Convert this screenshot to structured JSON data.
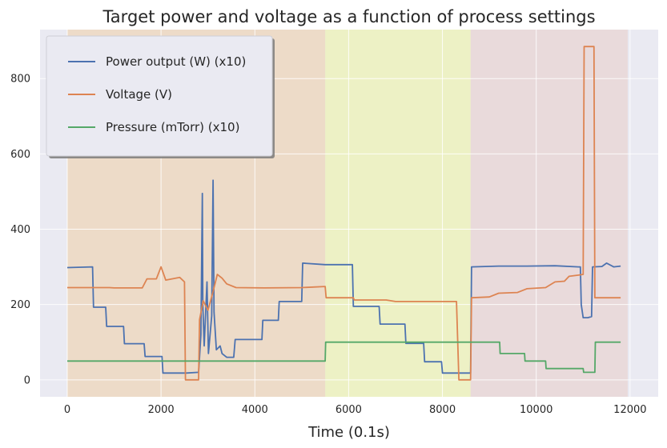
{
  "chart_data": {
    "type": "line",
    "title": "Target power and voltage as a function of process settings",
    "xlabel": "Time (0.1s)",
    "ylabel": "",
    "xlim": [
      -580,
      12600
    ],
    "ylim": [
      -45,
      930
    ],
    "x_ticks": [
      0,
      2000,
      4000,
      6000,
      8000,
      10000,
      12000
    ],
    "y_ticks": [
      0,
      200,
      400,
      600,
      800
    ],
    "grid": true,
    "legend_position": "top-left",
    "background_color": "#eaeaf2",
    "shaded_regions": [
      {
        "x0": 0,
        "x1": 5500,
        "color": "#f3c07c",
        "opacity": 0.35
      },
      {
        "x0": 5500,
        "x1": 8600,
        "color": "#eef5a0",
        "opacity": 0.55
      },
      {
        "x0": 8600,
        "x1": 11950,
        "color": "#e9b5a6",
        "opacity": 0.3
      }
    ],
    "series": [
      {
        "name": "Power output (W) (x10)",
        "color": "#4c72b0",
        "points": [
          [
            0,
            298
          ],
          [
            540,
            300
          ],
          [
            560,
            193
          ],
          [
            820,
            193
          ],
          [
            840,
            142
          ],
          [
            1200,
            142
          ],
          [
            1220,
            96
          ],
          [
            1640,
            96
          ],
          [
            1660,
            62
          ],
          [
            2020,
            62
          ],
          [
            2040,
            18
          ],
          [
            2520,
            18
          ],
          [
            2540,
            18
          ],
          [
            2800,
            20
          ],
          [
            2820,
            60
          ],
          [
            2850,
            120
          ],
          [
            2880,
            495
          ],
          [
            2890,
            200
          ],
          [
            2920,
            90
          ],
          [
            2980,
            260
          ],
          [
            3010,
            70
          ],
          [
            3080,
            170
          ],
          [
            3110,
            530
          ],
          [
            3130,
            180
          ],
          [
            3180,
            80
          ],
          [
            3260,
            90
          ],
          [
            3300,
            70
          ],
          [
            3400,
            60
          ],
          [
            3550,
            60
          ],
          [
            3580,
            107
          ],
          [
            4150,
            107
          ],
          [
            4170,
            158
          ],
          [
            4500,
            158
          ],
          [
            4520,
            208
          ],
          [
            5000,
            208
          ],
          [
            5020,
            310
          ],
          [
            5500,
            306
          ],
          [
            6080,
            306
          ],
          [
            6100,
            195
          ],
          [
            6650,
            195
          ],
          [
            6670,
            148
          ],
          [
            7200,
            148
          ],
          [
            7220,
            97
          ],
          [
            7600,
            97
          ],
          [
            7620,
            48
          ],
          [
            7980,
            48
          ],
          [
            8000,
            18
          ],
          [
            8600,
            18
          ],
          [
            8620,
            300
          ],
          [
            9200,
            302
          ],
          [
            9800,
            302
          ],
          [
            10400,
            303
          ],
          [
            10900,
            300
          ],
          [
            10940,
            300
          ],
          [
            10960,
            200
          ],
          [
            11000,
            165
          ],
          [
            11100,
            165
          ],
          [
            11180,
            168
          ],
          [
            11200,
            300
          ],
          [
            11400,
            301
          ],
          [
            11500,
            310
          ],
          [
            11650,
            300
          ],
          [
            11800,
            302
          ]
        ]
      },
      {
        "name": "Voltage (V)",
        "color": "#dd8452",
        "points": [
          [
            0,
            245
          ],
          [
            900,
            245
          ],
          [
            1000,
            244
          ],
          [
            1600,
            244
          ],
          [
            1700,
            268
          ],
          [
            1900,
            268
          ],
          [
            2000,
            300
          ],
          [
            2100,
            265
          ],
          [
            2400,
            272
          ],
          [
            2500,
            260
          ],
          [
            2520,
            0
          ],
          [
            2800,
            0
          ],
          [
            2820,
            160
          ],
          [
            2900,
            210
          ],
          [
            3000,
            185
          ],
          [
            3100,
            230
          ],
          [
            3200,
            280
          ],
          [
            3300,
            270
          ],
          [
            3400,
            255
          ],
          [
            3600,
            245
          ],
          [
            4200,
            244
          ],
          [
            5000,
            245
          ],
          [
            5500,
            248
          ],
          [
            5520,
            218
          ],
          [
            6100,
            218
          ],
          [
            6120,
            212
          ],
          [
            6800,
            212
          ],
          [
            7000,
            208
          ],
          [
            8000,
            208
          ],
          [
            8300,
            208
          ],
          [
            8350,
            0
          ],
          [
            8600,
            0
          ],
          [
            8620,
            218
          ],
          [
            9000,
            220
          ],
          [
            9200,
            230
          ],
          [
            9600,
            232
          ],
          [
            9800,
            242
          ],
          [
            10200,
            245
          ],
          [
            10400,
            260
          ],
          [
            10600,
            262
          ],
          [
            10700,
            275
          ],
          [
            10900,
            278
          ],
          [
            11000,
            280
          ],
          [
            11020,
            885
          ],
          [
            11230,
            885
          ],
          [
            11250,
            218
          ],
          [
            11800,
            218
          ]
        ]
      },
      {
        "name": "Pressure (mTorr) (x10)",
        "color": "#55a868",
        "points": [
          [
            0,
            50
          ],
          [
            5500,
            50
          ],
          [
            5510,
            100
          ],
          [
            9220,
            100
          ],
          [
            9230,
            70
          ],
          [
            9750,
            70
          ],
          [
            9760,
            50
          ],
          [
            10200,
            50
          ],
          [
            10210,
            30
          ],
          [
            11000,
            30
          ],
          [
            11010,
            20
          ],
          [
            11250,
            20
          ],
          [
            11260,
            100
          ],
          [
            11800,
            100
          ]
        ]
      }
    ]
  }
}
